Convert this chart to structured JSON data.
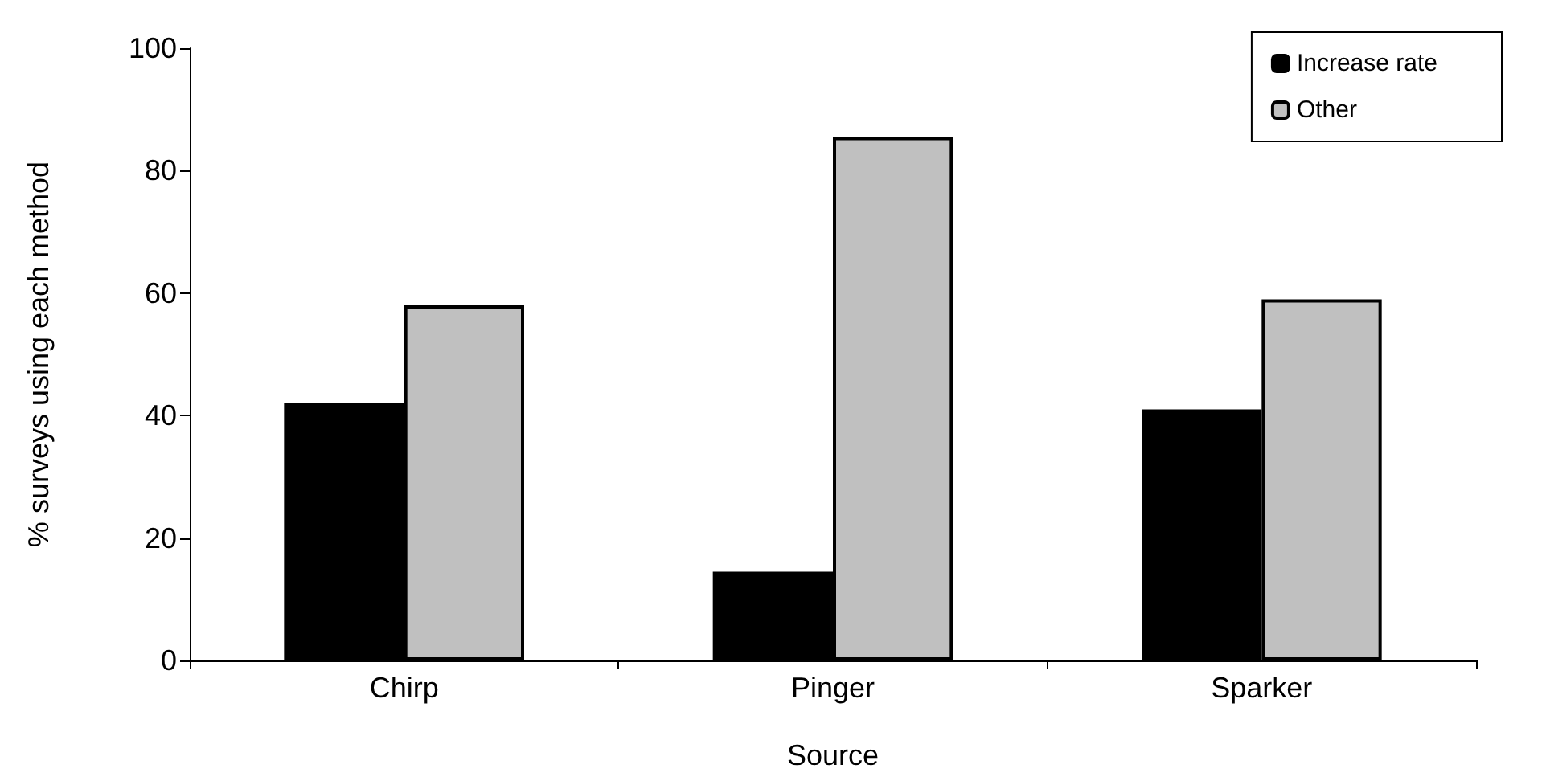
{
  "chart_data": {
    "type": "bar",
    "xlabel": "Source",
    "ylabel": "% surveys using each method",
    "categories": [
      "Chirp",
      "Pinger",
      "Sparker"
    ],
    "series": [
      {
        "name": "Increase rate",
        "color": "#000000",
        "values": [
          42,
          14.5,
          41
        ]
      },
      {
        "name": "Other",
        "color": "#c0c0c0",
        "values": [
          58,
          85.5,
          59
        ]
      }
    ],
    "ylim": [
      0,
      100
    ],
    "yticks": [
      0,
      20,
      40,
      60,
      80,
      100
    ],
    "grid": false,
    "legend": "top right"
  }
}
